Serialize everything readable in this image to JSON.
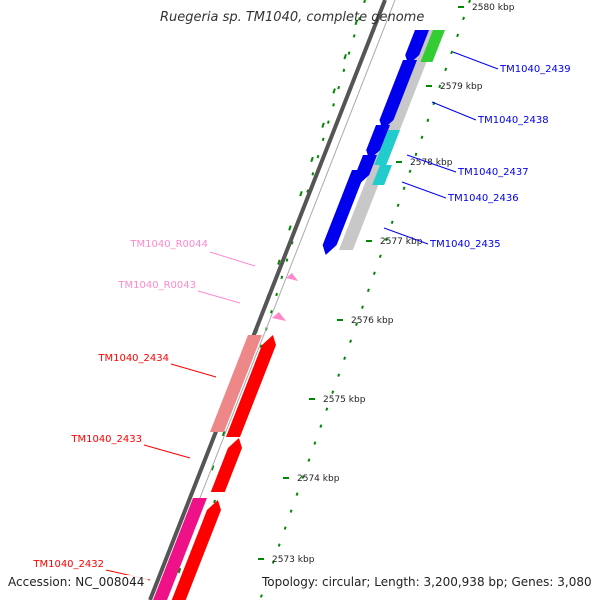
{
  "title": "Ruegeria sp. TM1040, complete genome",
  "accession": "Accession: NC_008044",
  "topology": "Topology: circular; Length: 3,200,938 bp; Genes: 3,080",
  "colors": {
    "forward": "#0000ee",
    "reverse": "#ff0000",
    "rna": "#ff88cc",
    "cds_shade": "#c8c8c8",
    "cds_reverse_shade": "#ee8888",
    "hypothetical": "#ee1188",
    "highlight_green": "#33cc33",
    "highlight_cyan": "#22cccc",
    "backbone": "#777777",
    "ticks": "#008800"
  },
  "ruler": [
    {
      "label": "2580 kbp"
    },
    {
      "label": "2579 kbp"
    },
    {
      "label": "2578 kbp"
    },
    {
      "label": "2577 kbp"
    },
    {
      "label": "2576 kbp"
    },
    {
      "label": "2575 kbp"
    },
    {
      "label": "2574 kbp"
    },
    {
      "label": "2573 kbp"
    }
  ],
  "genes": [
    {
      "name": "TM1040_2439",
      "strand": "forward"
    },
    {
      "name": "TM1040_2438",
      "strand": "forward"
    },
    {
      "name": "TM1040_2437",
      "strand": "forward"
    },
    {
      "name": "TM1040_2436",
      "strand": "forward"
    },
    {
      "name": "TM1040_2435",
      "strand": "forward"
    },
    {
      "name": "TM1040_R0044",
      "strand": "reverse",
      "type": "rna"
    },
    {
      "name": "TM1040_R0043",
      "strand": "reverse",
      "type": "rna"
    },
    {
      "name": "TM1040_2434",
      "strand": "reverse"
    },
    {
      "name": "TM1040_2433",
      "strand": "reverse"
    },
    {
      "name": "TM1040_2432",
      "strand": "reverse"
    }
  ]
}
